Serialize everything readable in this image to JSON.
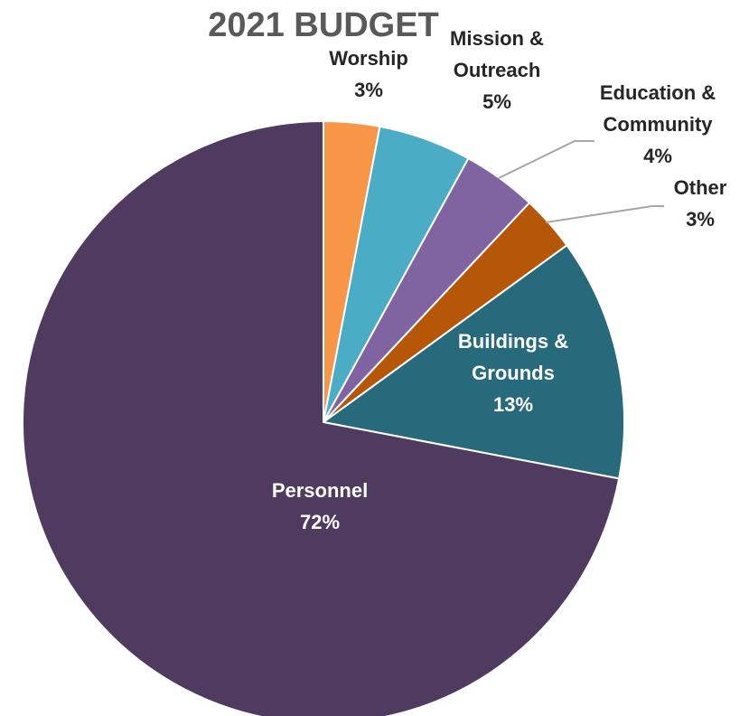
{
  "chart_data": {
    "type": "pie",
    "title": "2021 BUDGET",
    "slices": [
      {
        "name": "Worship",
        "value": 3,
        "label": "3%",
        "color": "#f79646",
        "label_color": "#262626"
      },
      {
        "name": "Mission & Outreach",
        "value": 5,
        "label": "5%",
        "color": "#4bacc6",
        "label_color": "#262626"
      },
      {
        "name": "Education & Community",
        "value": 4,
        "label": "4%",
        "color": "#8064a2",
        "label_color": "#262626"
      },
      {
        "name": "Other",
        "value": 3,
        "label": "3%",
        "color": "#b65708",
        "label_color": "#262626"
      },
      {
        "name": "Buildings & Grounds",
        "value": 13,
        "label": "13%",
        "color": "#276a7c",
        "label_color": "#ffffff"
      },
      {
        "name": "Personnel",
        "value": 72,
        "label": "72%",
        "color": "#4e3b5f",
        "label_color": "#ffffff"
      }
    ]
  }
}
